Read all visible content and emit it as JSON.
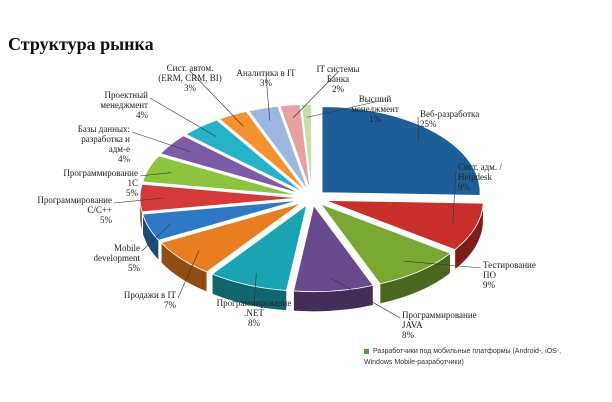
{
  "chart_data": {
    "type": "pie",
    "title": "Структура рынка",
    "unit": "%",
    "slices": [
      {
        "label": "Веб-разработка",
        "value": 25,
        "value_text": "25%",
        "color": "#1f5f99"
      },
      {
        "label": "Сист. адм. / Helpdesk",
        "value": 9,
        "value_text": "9%",
        "color": "#c9302c"
      },
      {
        "label": "Тестирование ПО",
        "value": 9,
        "value_text": "9%",
        "color": "#7aa833"
      },
      {
        "label": "Программирование JAVA",
        "value": 8,
        "value_text": "8%",
        "color": "#6a4a8e"
      },
      {
        "label": "Программирование .NET",
        "value": 8,
        "value_text": "8%",
        "color": "#1aa3b3"
      },
      {
        "label": "Продажи в IT",
        "value": 7,
        "value_text": "7%",
        "color": "#e97d21"
      },
      {
        "label": "Mobile development",
        "value": 5,
        "value_text": "5%",
        "color": "#2f78c6"
      },
      {
        "label": "Программирование С/С++",
        "value": 5,
        "value_text": "5%",
        "color": "#d43a3a"
      },
      {
        "label": "Программирование 1С",
        "value": 5,
        "value_text": "5%",
        "color": "#8cc440"
      },
      {
        "label": "Базы данных: разработка и адм-е",
        "value": 4,
        "value_text": "4%",
        "color": "#7b5ca6"
      },
      {
        "label": "Проектный менеджмент",
        "value": 4,
        "value_text": "4%",
        "color": "#26b3c7"
      },
      {
        "label": "Сист. автом. (ERM, CRM, BI)",
        "value": 3,
        "value_text": "3%",
        "color": "#f5922f"
      },
      {
        "label": "Аналитика в IT",
        "value": 3,
        "value_text": "3%",
        "color": "#9db7e0"
      },
      {
        "label": "IT системы Банка",
        "value": 2,
        "value_text": "2%",
        "color": "#e8a0a0"
      },
      {
        "label": "Высший менеджмент",
        "value": 1,
        "value_text": "1%",
        "color": "#c7e0a8"
      }
    ],
    "legend": {
      "text": "Разработчики под мобильные платформы (Android-, iOS-, Windows Mobile-разработчики)",
      "color": "#3aa845"
    }
  }
}
